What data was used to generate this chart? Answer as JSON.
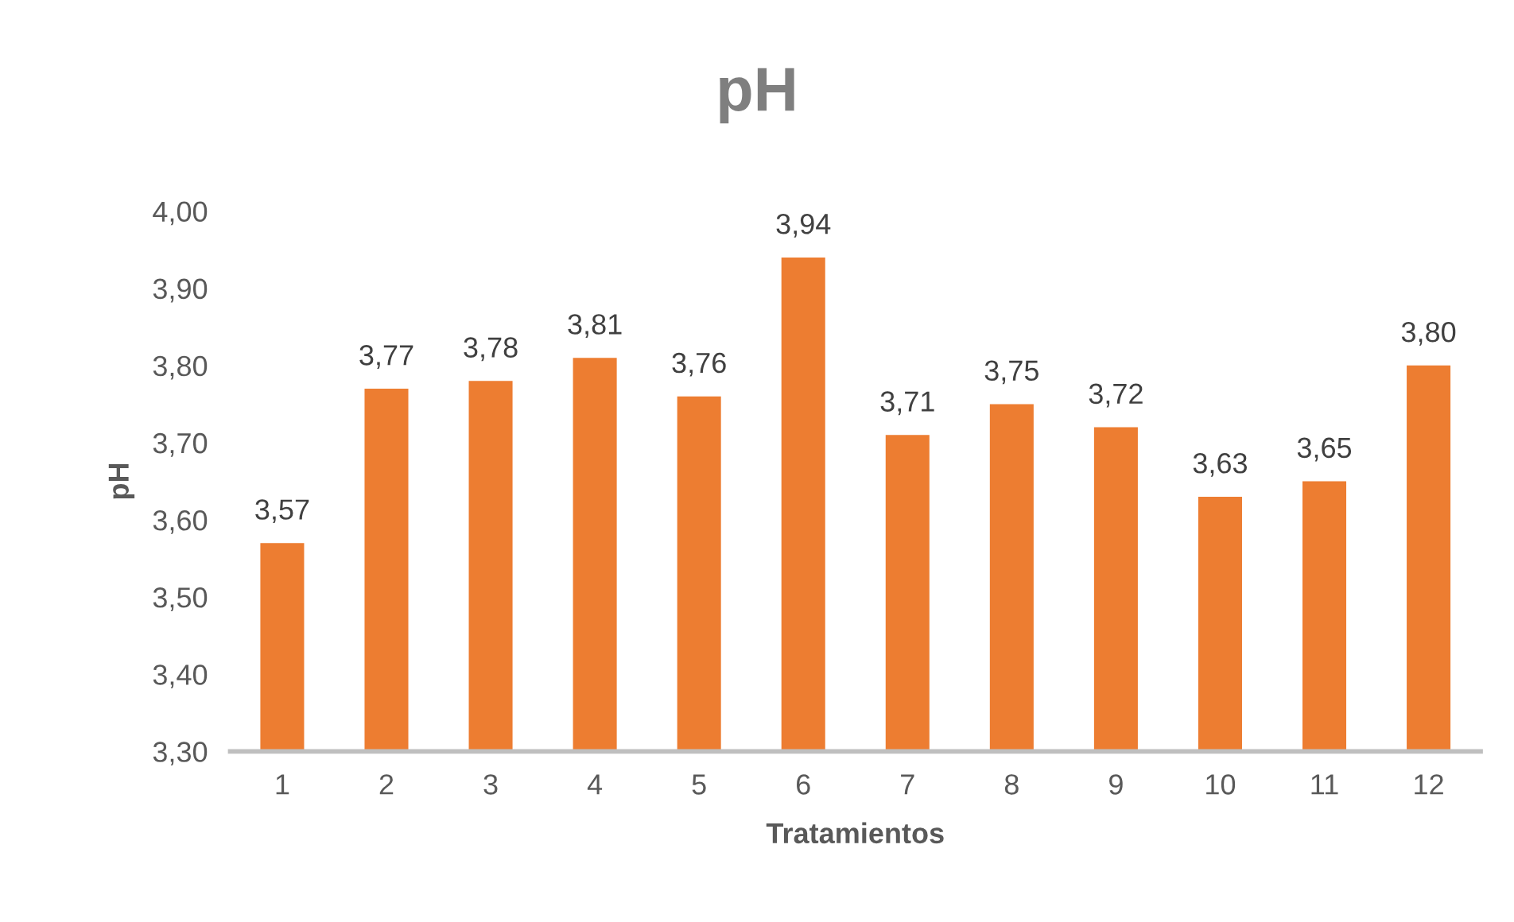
{
  "chart_data": {
    "type": "bar",
    "title": "pH",
    "xlabel": "Tratamientos",
    "ylabel": "pH",
    "categories": [
      "1",
      "2",
      "3",
      "4",
      "5",
      "6",
      "7",
      "8",
      "9",
      "10",
      "11",
      "12"
    ],
    "values": [
      3.57,
      3.77,
      3.78,
      3.81,
      3.76,
      3.94,
      3.71,
      3.75,
      3.72,
      3.63,
      3.65,
      3.8
    ],
    "value_labels": [
      "3,57",
      "3,77",
      "3,78",
      "3,81",
      "3,76",
      "3,94",
      "3,71",
      "3,75",
      "3,72",
      "3,63",
      "3,65",
      "3,80"
    ],
    "color": "#ed7d31",
    "ylim": [
      3.3,
      4.0
    ],
    "yticks": [
      {
        "value": 3.3,
        "label": "3,30"
      },
      {
        "value": 3.4,
        "label": "3,40"
      },
      {
        "value": 3.5,
        "label": "3,50"
      },
      {
        "value": 3.6,
        "label": "3,60"
      },
      {
        "value": 3.7,
        "label": "3,70"
      },
      {
        "value": 3.8,
        "label": "3,80"
      },
      {
        "value": 3.9,
        "label": "3,90"
      },
      {
        "value": 4.0,
        "label": "4,00"
      }
    ],
    "grid": false
  }
}
